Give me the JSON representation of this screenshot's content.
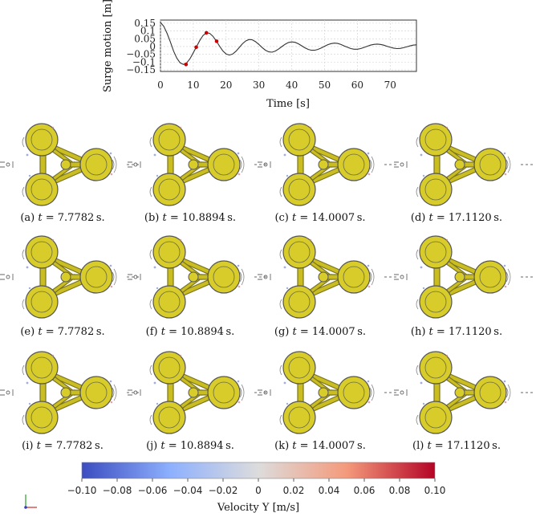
{
  "chart_data": {
    "type": "line",
    "title": "",
    "xlabel": "Time [s]",
    "ylabel": "Surge motion [m]",
    "xlim": [
      0,
      78
    ],
    "ylim": [
      -0.16,
      0.17
    ],
    "grid": true,
    "x_ticks": [
      "0",
      "10",
      "20",
      "30",
      "40",
      "50",
      "60",
      "70"
    ],
    "x_tick_values": [
      0,
      10,
      20,
      30,
      40,
      50,
      60,
      70
    ],
    "y_ticks": [
      "0.15",
      "0.1",
      "0.05",
      "0",
      "−0.05",
      "−0.1",
      "−0.15"
    ],
    "y_tick_values": [
      0.15,
      0.1,
      0.05,
      0,
      -0.05,
      -0.1,
      -0.15
    ],
    "series": [
      {
        "x": [
          0,
          1,
          2,
          3,
          4,
          5,
          6,
          7,
          8,
          9,
          10,
          11,
          12,
          13,
          14,
          15,
          16,
          17,
          18,
          19,
          20,
          21,
          22,
          23,
          24,
          25,
          26,
          27,
          28,
          29,
          30,
          31,
          32,
          33,
          34,
          35,
          36,
          37,
          38,
          39,
          40,
          41,
          42,
          43,
          44,
          45,
          46,
          47,
          48,
          49,
          50,
          51,
          52,
          53,
          54,
          55,
          56,
          57,
          58,
          59,
          60,
          61,
          62,
          63,
          64,
          65,
          66,
          67,
          68,
          69,
          70,
          71,
          72,
          73,
          74,
          75,
          76,
          77,
          78
        ],
        "y": [
          0.155,
          0.13,
          0.085,
          0.03,
          -0.03,
          -0.075,
          -0.105,
          -0.115,
          -0.105,
          -0.078,
          -0.04,
          0.0,
          0.04,
          0.072,
          0.088,
          0.085,
          0.066,
          0.036,
          0.003,
          -0.028,
          -0.048,
          -0.055,
          -0.048,
          -0.03,
          -0.006,
          0.018,
          0.036,
          0.045,
          0.043,
          0.031,
          0.013,
          -0.007,
          -0.024,
          -0.034,
          -0.036,
          -0.029,
          -0.016,
          0.0,
          0.015,
          0.026,
          0.03,
          0.027,
          0.018,
          0.005,
          -0.008,
          -0.018,
          -0.024,
          -0.024,
          -0.018,
          -0.009,
          0.002,
          0.012,
          0.019,
          0.022,
          0.02,
          0.013,
          0.004,
          -0.005,
          -0.013,
          -0.017,
          -0.017,
          -0.013,
          -0.006,
          0.002,
          0.009,
          0.014,
          0.016,
          0.014,
          0.009,
          0.002,
          -0.005,
          -0.01,
          -0.013,
          -0.012,
          -0.008,
          -0.002,
          0.004,
          0.009,
          0.011
        ]
      }
    ],
    "markers": [
      {
        "x": 7.7782,
        "y": -0.115
      },
      {
        "x": 10.8894,
        "y": -0.004
      },
      {
        "x": 14.0007,
        "y": 0.088
      },
      {
        "x": 17.112,
        "y": 0.034
      }
    ],
    "colors": {
      "line": "#333333",
      "marker": "#cc0000",
      "grid": "#d0d0d0"
    }
  },
  "panels": [
    {
      "label": "(a)",
      "time": "7.7782"
    },
    {
      "label": "(b)",
      "time": "10.8894"
    },
    {
      "label": "(c)",
      "time": "14.0007"
    },
    {
      "label": "(d)",
      "time": "17.1120"
    },
    {
      "label": "(e)",
      "time": "7.7782"
    },
    {
      "label": "(f)",
      "time": "10.8894"
    },
    {
      "label": "(g)",
      "time": "14.0007"
    },
    {
      "label": "(h)",
      "time": "17.1120"
    },
    {
      "label": "(i)",
      "time": "7.7782"
    },
    {
      "label": "(j)",
      "time": "10.8894"
    },
    {
      "label": "(k)",
      "time": "14.0007"
    },
    {
      "label": "(l)",
      "time": "17.1120"
    }
  ],
  "caption_var": "t",
  "caption_unit": "s.",
  "colorbar": {
    "title": "Velocity Y [m/s]",
    "ticks": [
      "−0.10",
      "−0.08",
      "−0.06",
      "−0.04",
      "−0.02",
      "0",
      "0.02",
      "0.04",
      "0.06",
      "0.08",
      "0.10"
    ],
    "tick_values": [
      -0.1,
      -0.08,
      -0.06,
      -0.04,
      -0.02,
      0,
      0.02,
      0.04,
      0.06,
      0.08,
      0.1
    ],
    "colors": [
      "#3b4cc0",
      "#dddcdc",
      "#b40426"
    ]
  },
  "platform_colors": {
    "hull": "#d8cc2a",
    "outline": "#555555",
    "brace": "#c9bd22"
  }
}
